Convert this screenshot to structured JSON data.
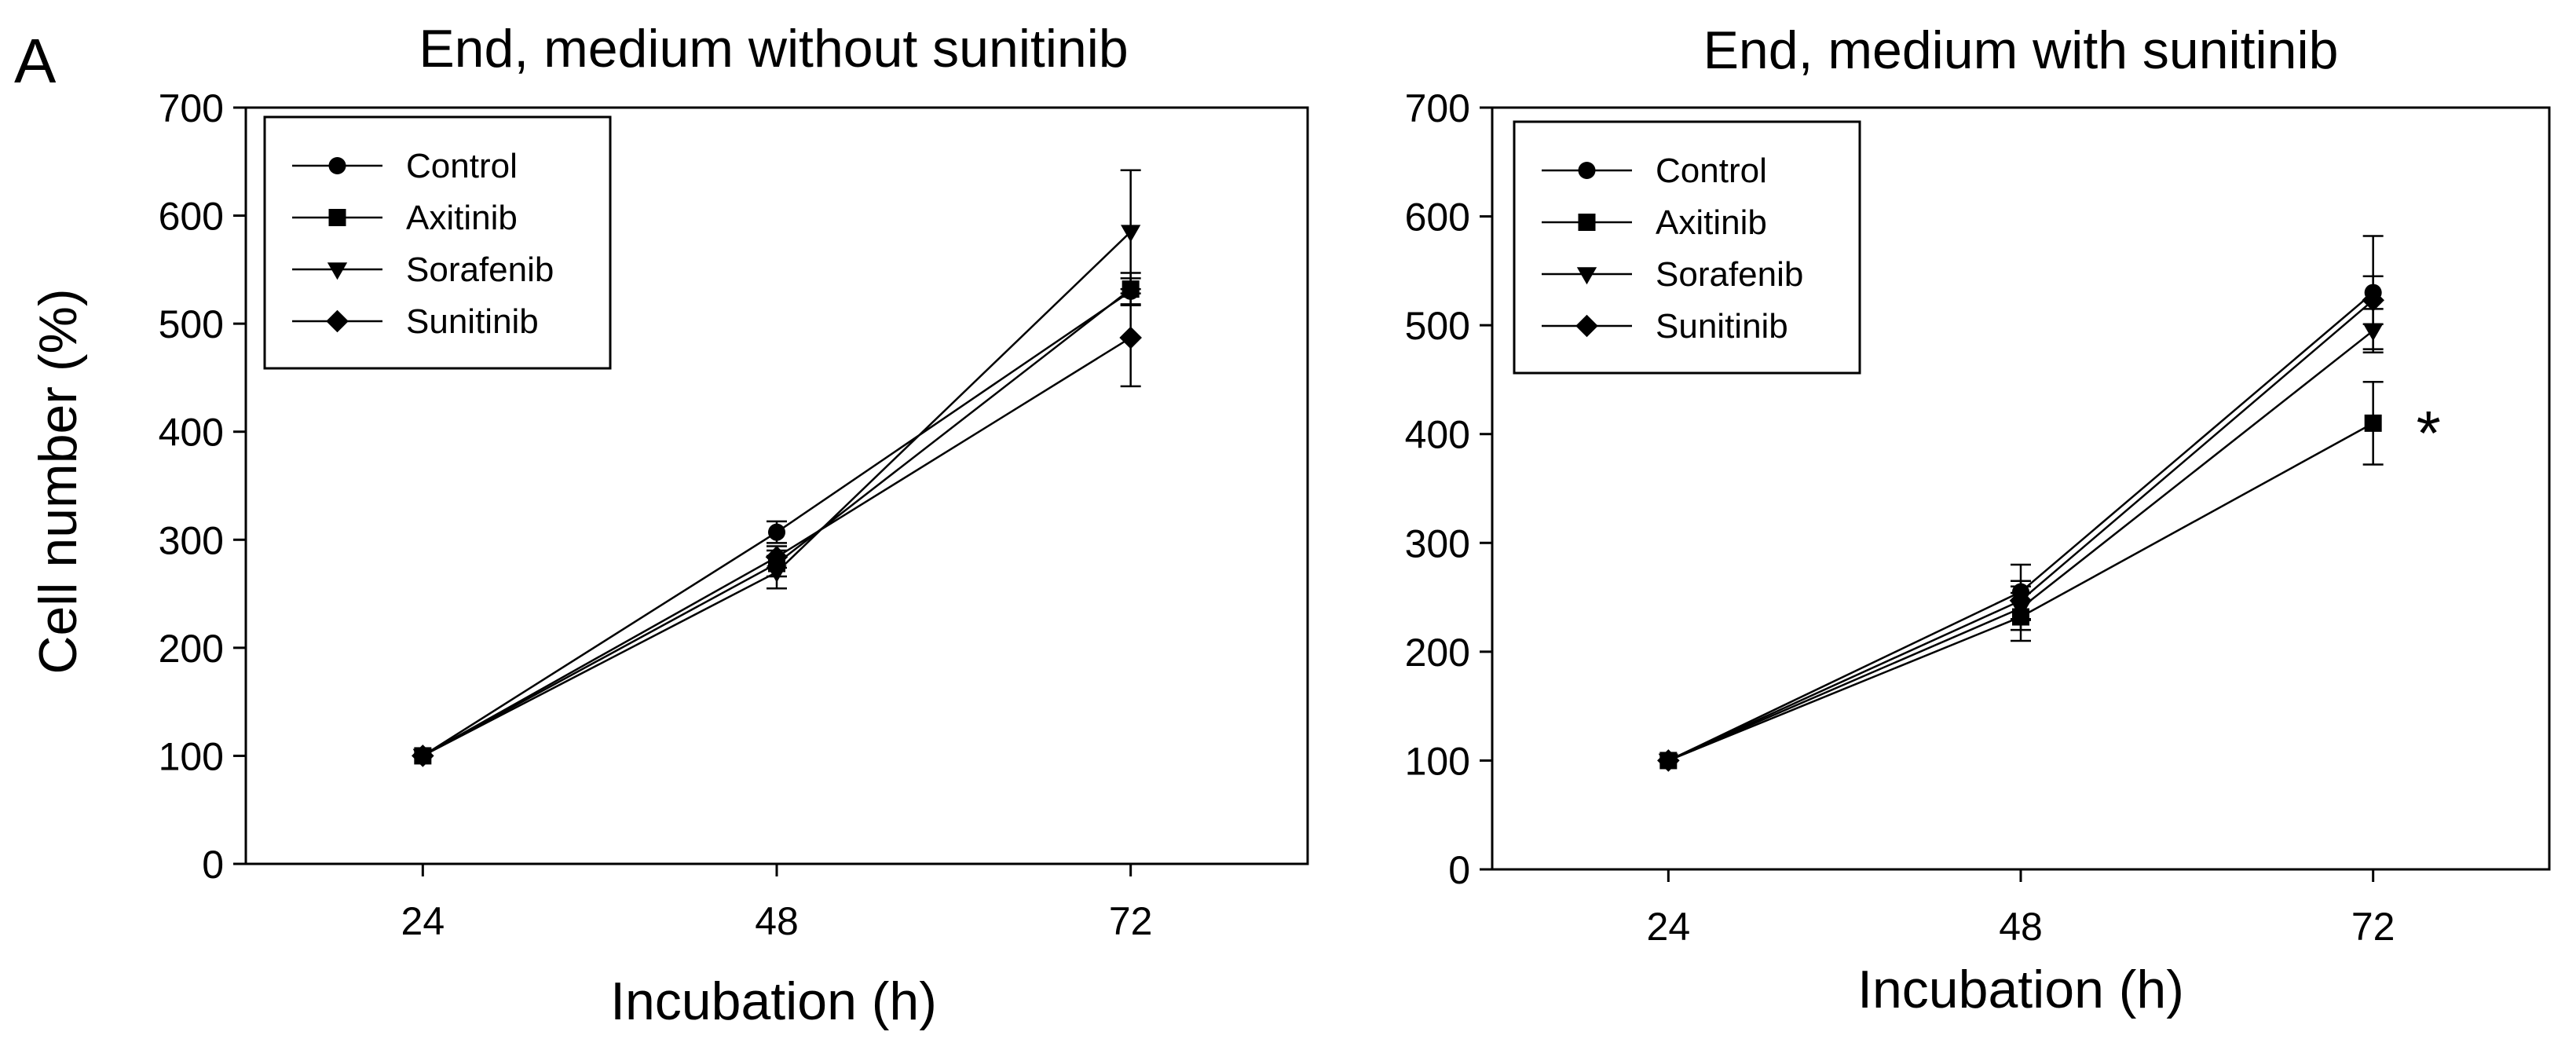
{
  "panel_label": "A",
  "chart_data": [
    {
      "type": "line",
      "title": "End, medium without sunitinib",
      "xlabel": "Incubation (h)",
      "ylabel": "Cell number (%)",
      "x": [
        24,
        48,
        72
      ],
      "x_tick_labels": [
        "24",
        "48",
        "72"
      ],
      "y_ticks": [
        0,
        100,
        200,
        300,
        400,
        500,
        600,
        700
      ],
      "y_tick_labels": [
        "0",
        "100",
        "200",
        "300",
        "400",
        "500",
        "600",
        "700"
      ],
      "ylim": [
        0,
        700
      ],
      "xlim": [
        12,
        84
      ],
      "grid": false,
      "legend_position": "top-left",
      "series": [
        {
          "name": "Control",
          "marker": "circle",
          "values": [
            100,
            307,
            530
          ],
          "errors": [
            0,
            10,
            12
          ]
        },
        {
          "name": "Axitinib",
          "marker": "square",
          "values": [
            100,
            278,
            532
          ],
          "errors": [
            0,
            12,
            15
          ]
        },
        {
          "name": "Sorafenib",
          "marker": "triangle-down",
          "values": [
            100,
            270,
            585
          ],
          "errors": [
            0,
            15,
            57
          ]
        },
        {
          "name": "Sunitinib",
          "marker": "diamond",
          "values": [
            100,
            284,
            487
          ],
          "errors": [
            0,
            10,
            45
          ]
        }
      ],
      "annotations": []
    },
    {
      "type": "line",
      "title": "End, medium with sunitinib",
      "xlabel": "Incubation (h)",
      "ylabel": "",
      "x": [
        24,
        48,
        72
      ],
      "x_tick_labels": [
        "24",
        "48",
        "72"
      ],
      "y_ticks": [
        0,
        100,
        200,
        300,
        400,
        500,
        600,
        700
      ],
      "y_tick_labels": [
        "0",
        "100",
        "200",
        "300",
        "400",
        "500",
        "600",
        "700"
      ],
      "ylim": [
        0,
        700
      ],
      "xlim": [
        12,
        84
      ],
      "grid": false,
      "legend_position": "top-left",
      "series": [
        {
          "name": "Control",
          "marker": "circle",
          "values": [
            100,
            255,
            530
          ],
          "errors": [
            0,
            25,
            52
          ]
        },
        {
          "name": "Axitinib",
          "marker": "square",
          "values": [
            100,
            232,
            410
          ],
          "errors": [
            0,
            22,
            38
          ]
        },
        {
          "name": "Sorafenib",
          "marker": "triangle-down",
          "values": [
            100,
            240,
            495
          ],
          "errors": [
            0,
            20,
            20
          ]
        },
        {
          "name": "Sunitinib",
          "marker": "diamond",
          "values": [
            100,
            247,
            523
          ],
          "errors": [
            0,
            18,
            22
          ]
        }
      ],
      "annotations": [
        {
          "text": "*",
          "series": "Axitinib",
          "x": 72
        }
      ]
    }
  ]
}
